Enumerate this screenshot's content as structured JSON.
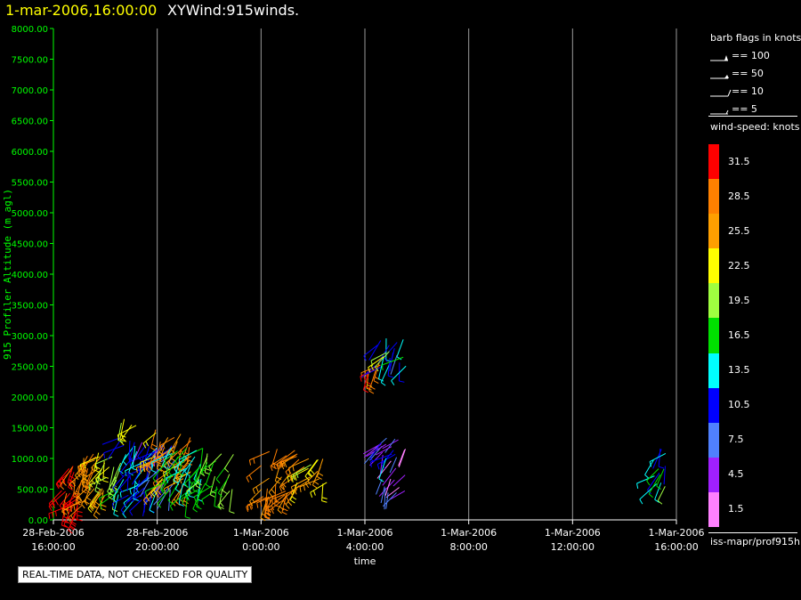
{
  "header": {
    "datetime": "1-mar-2006,16:00:00",
    "product": "XYWind:915winds."
  },
  "qc_note": "REAL-TIME DATA, NOT CHECKED FOR QUALITY",
  "legend": {
    "barb_title": "barb flags in knots",
    "barb_items": [
      "== 100",
      "== 50",
      "== 10",
      "== 5"
    ],
    "speed_title": "wind-speed: knots",
    "speed_colors": [
      "#ff0000",
      "#ff8000",
      "#ff9f00",
      "#ffff00",
      "#a0ff40",
      "#00e000",
      "#00ffff",
      "#0000ff",
      "#5080ff",
      "#a020ff",
      "#ff80ff"
    ],
    "speed_labels": [
      "31.5",
      "28.5",
      "25.5",
      "22.5",
      "19.5",
      "16.5",
      "13.5",
      "10.5",
      "7.5",
      "4.5",
      "1.5"
    ],
    "source": "iss-mapr/prof915h"
  },
  "chart_data": {
    "type": "scatter",
    "title": "1-mar-2006,16:00:00 XYWind:915winds.",
    "xlabel": "time",
    "ylabel": "915 Profiler Altitude (m agl)",
    "ylim": [
      0,
      8000
    ],
    "yticks": [
      "0.00",
      "500.00",
      "1000.00",
      "1500.00",
      "2000.00",
      "2500.00",
      "3000.00",
      "3500.00",
      "4000.00",
      "4500.00",
      "5000.00",
      "5500.00",
      "6000.00",
      "6500.00",
      "7000.00",
      "7500.00",
      "8000.00"
    ],
    "xlim_hours": [
      0,
      24
    ],
    "xticks": [
      {
        "date": "28-Feb-2006",
        "time": "16:00:00"
      },
      {
        "date": "28-Feb-2006",
        "time": "20:00:00"
      },
      {
        "date": "1-Mar-2006",
        "time": "0:00:00"
      },
      {
        "date": "1-Mar-2006",
        "time": "4:00:00"
      },
      {
        "date": "1-Mar-2006",
        "time": "8:00:00"
      },
      {
        "date": "1-Mar-2006",
        "time": "12:00:00"
      },
      {
        "date": "1-Mar-2006",
        "time": "16:00:00"
      }
    ],
    "grid": true,
    "clusters": [
      {
        "t0": 0.2,
        "t1": 1.3,
        "z0": 100,
        "z1": 900,
        "speed": 31
      },
      {
        "t0": 1.0,
        "t1": 2.0,
        "z0": 200,
        "z1": 1100,
        "speed": 27
      },
      {
        "t0": 1.7,
        "t1": 2.6,
        "z0": 300,
        "z1": 1100,
        "speed": 20
      },
      {
        "t0": 2.5,
        "t1": 4.0,
        "z0": 300,
        "z1": 1400,
        "speed": 12
      },
      {
        "t0": 2.6,
        "t1": 3.3,
        "z0": 1500,
        "z1": 1750,
        "speed": 21
      },
      {
        "t0": 3.4,
        "t1": 4.7,
        "z0": 400,
        "z1": 1300,
        "speed": 8
      },
      {
        "t0": 3.9,
        "t1": 5.4,
        "z0": 500,
        "z1": 1500,
        "speed": 26
      },
      {
        "t0": 4.2,
        "t1": 5.8,
        "z0": 400,
        "z1": 1200,
        "speed": 15
      },
      {
        "t0": 5.5,
        "t1": 7.0,
        "z0": 450,
        "z1": 1100,
        "speed": 18
      },
      {
        "t0": 8.0,
        "t1": 9.5,
        "z0": 350,
        "z1": 1200,
        "speed": 27
      },
      {
        "t0": 9.3,
        "t1": 10.6,
        "z0": 550,
        "z1": 1050,
        "speed": 23
      },
      {
        "t0": 11.8,
        "t1": 12.6,
        "z0": 2350,
        "z1": 2650,
        "speed": 28
      },
      {
        "t0": 12.4,
        "t1": 13.6,
        "z0": 2500,
        "z1": 3050,
        "speed": 11
      },
      {
        "t0": 12.6,
        "t1": 13.6,
        "z0": 2600,
        "z1": 2750,
        "speed": 19
      },
      {
        "t0": 12.5,
        "t1": 13.6,
        "z0": 400,
        "z1": 1350,
        "speed": 5
      },
      {
        "t0": 12.6,
        "t1": 13.2,
        "z0": 950,
        "z1": 1300,
        "speed": 13
      },
      {
        "t0": 23.1,
        "t1": 23.6,
        "z0": 500,
        "z1": 1200,
        "speed": 11
      },
      {
        "t0": 23.3,
        "t1": 23.6,
        "z0": 500,
        "z1": 850,
        "speed": 17
      }
    ]
  }
}
